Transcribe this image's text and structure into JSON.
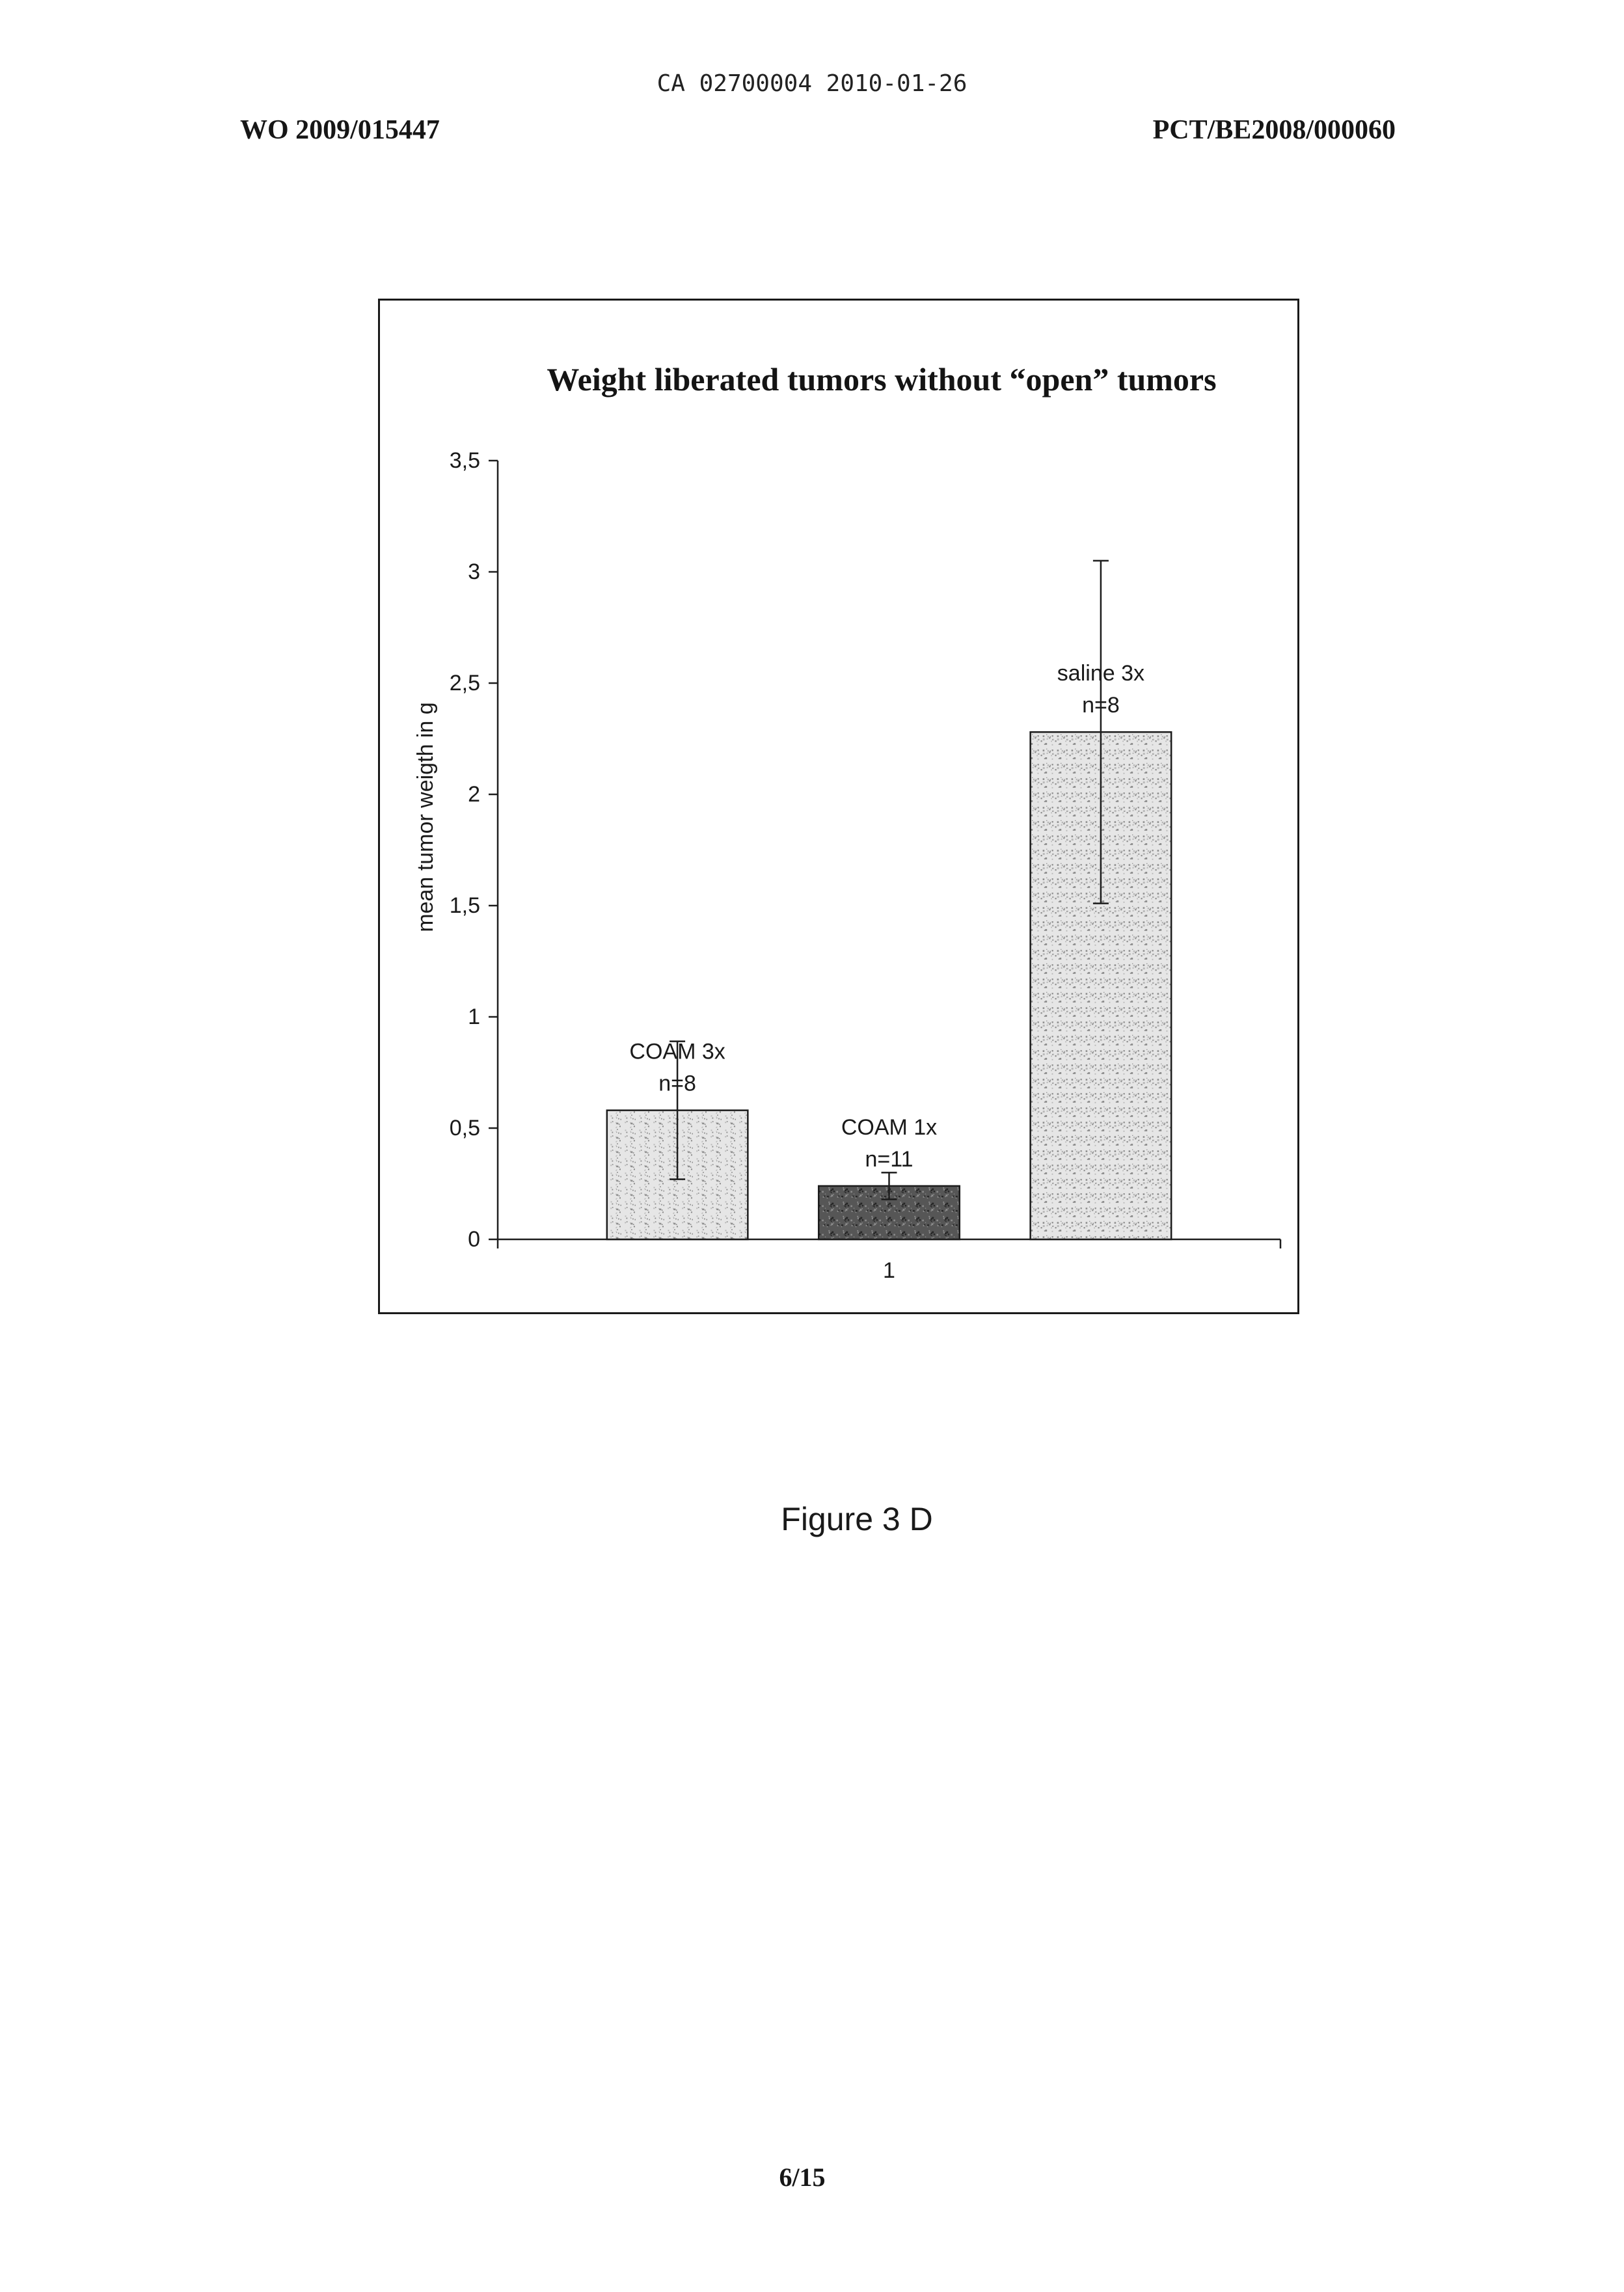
{
  "header": {
    "filing": "CA 02700004 2010-01-26",
    "publication_number": "WO 2009/015447",
    "application_number": "PCT/BE2008/000060"
  },
  "figure_caption": "Figure 3 D",
  "page_number": "6/15",
  "chart_data": {
    "type": "bar",
    "title": "Weight liberated tumors without “open” tumors",
    "xlabel": "",
    "ylabel": "mean tumor weigth in g",
    "categories": [
      "1"
    ],
    "ylim": [
      0,
      3.5
    ],
    "yticks": [
      0,
      0.5,
      1,
      1.5,
      2,
      2.5,
      3,
      3.5
    ],
    "ytick_labels": [
      "0",
      "0,5",
      "1",
      "1,5",
      "2",
      "2,5",
      "3",
      "3,5"
    ],
    "grid": false,
    "legend": false,
    "series": [
      {
        "name": "COAM 3x",
        "n": "n=8",
        "values": [
          0.58
        ],
        "errors": [
          0.31
        ],
        "color": "#e6e6e6"
      },
      {
        "name": "COAM 1x",
        "n": "n=11",
        "values": [
          0.24
        ],
        "errors": [
          0.06
        ],
        "color": "#565656"
      },
      {
        "name": "saline 3x",
        "n": "n=8",
        "values": [
          2.28
        ],
        "errors": [
          0.77
        ],
        "color": "#e6e6e6"
      }
    ]
  }
}
